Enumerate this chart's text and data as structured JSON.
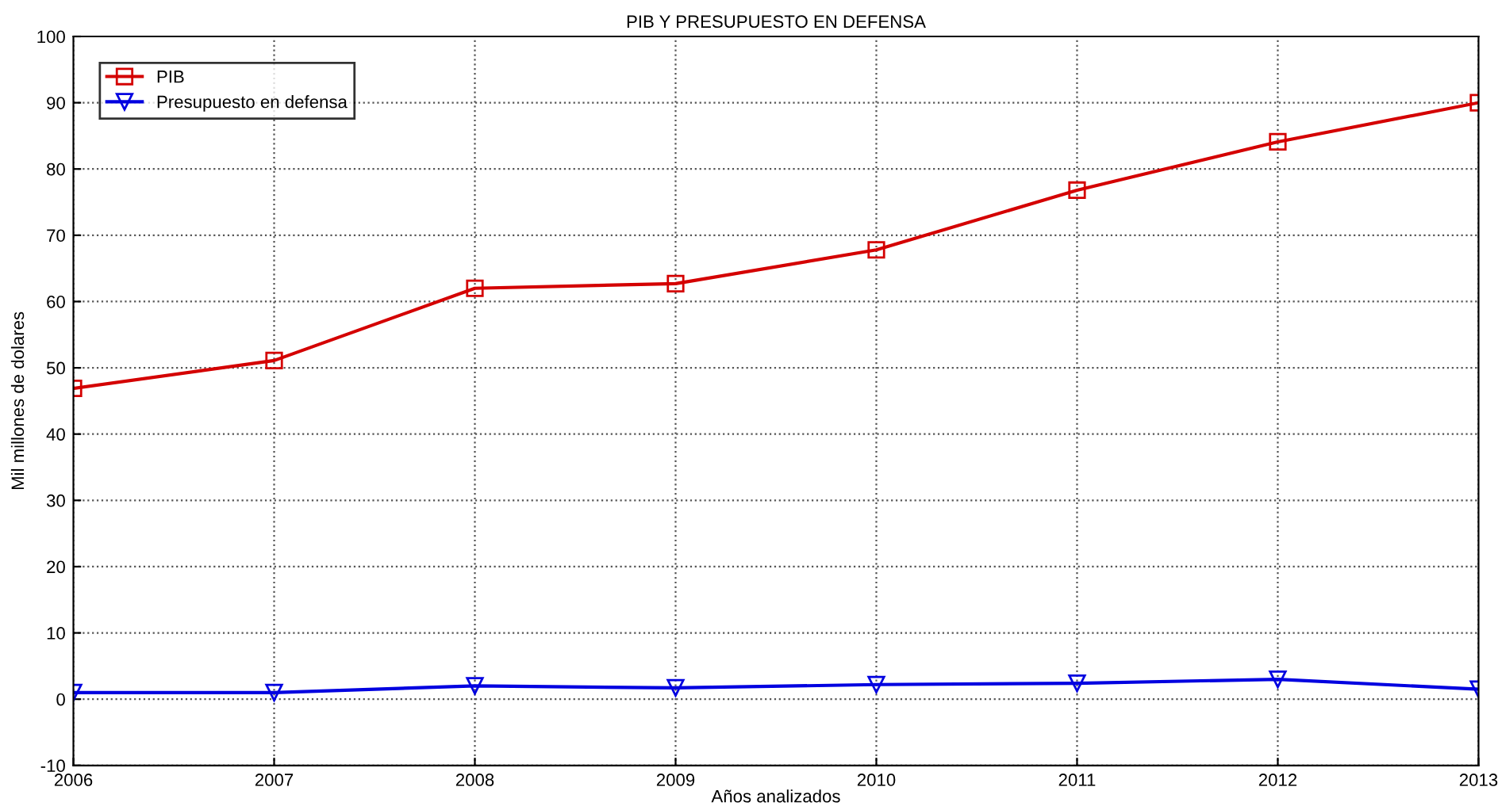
{
  "chart_data": {
    "type": "line",
    "title": "PIB Y PRESUPUESTO EN DEFENSA",
    "xlabel": "Años analizados",
    "ylabel": "Mil millones de dolares",
    "x": [
      2006,
      2007,
      2008,
      2009,
      2010,
      2011,
      2012,
      2013
    ],
    "series": [
      {
        "name": "PIB",
        "color": "#d40000",
        "marker": "square",
        "values": [
          46.9,
          51.1,
          62,
          62.7,
          67.8,
          76.8,
          84.1,
          90
        ]
      },
      {
        "name": "Presupuesto en defensa",
        "color": "#0000e0",
        "marker": "triangle",
        "values": [
          1,
          1,
          2,
          1.7,
          2.2,
          2.4,
          3,
          1.5
        ]
      }
    ],
    "xlim": [
      2006,
      2013
    ],
    "xticks": [
      2006,
      2007,
      2008,
      2009,
      2010,
      2011,
      2012,
      2013
    ],
    "ylim": [
      -10,
      100
    ],
    "yticks": [
      -10,
      0,
      10,
      20,
      30,
      40,
      50,
      60,
      70,
      80,
      90,
      100
    ],
    "grid": true,
    "legend": "top left",
    "line_style": "solid"
  }
}
